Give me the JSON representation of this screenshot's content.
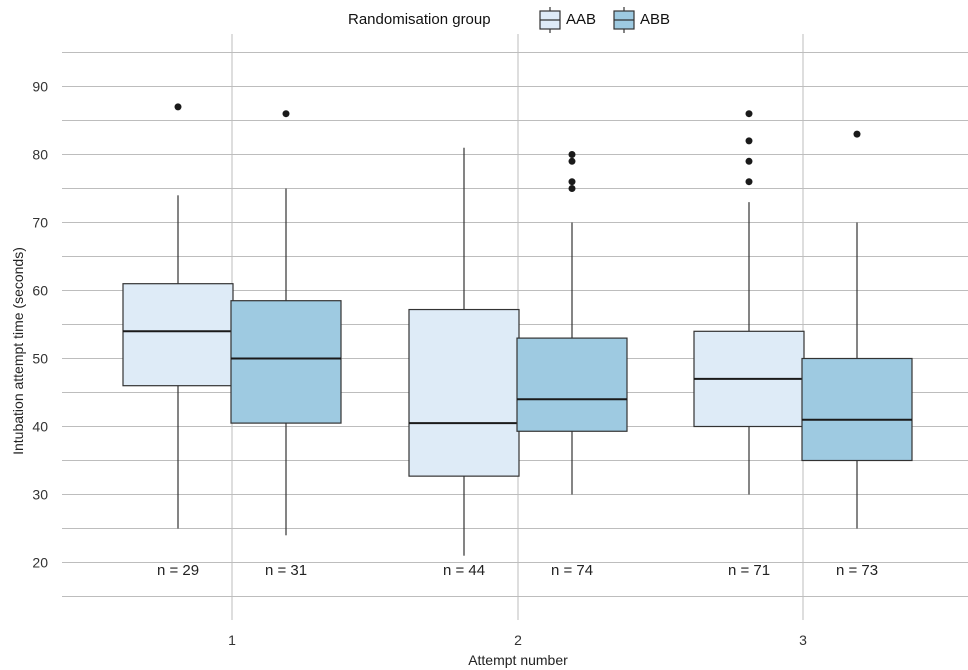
{
  "chart_data": {
    "type": "box",
    "xlabel": "Attempt number",
    "ylabel": "Intubation attempt time (seconds)",
    "ylim": [
      15,
      96
    ],
    "yticks": [
      20,
      30,
      40,
      50,
      60,
      70,
      80,
      90
    ],
    "categories": [
      "1",
      "2",
      "3"
    ],
    "grid": true,
    "legend": {
      "title": "Randomisation group",
      "placement": "top",
      "entries": [
        "AAB",
        "ABB"
      ]
    },
    "colors": {
      "AAB": "#deebf7",
      "ABB": "#9ecae1",
      "outline": "#333333",
      "grid": "#bdbdbd"
    },
    "series": [
      {
        "name": "AAB",
        "boxes": [
          {
            "category": "1",
            "whisker_low": 25,
            "q1": 46,
            "median": 54,
            "q3": 61,
            "whisker_high": 74,
            "outliers": [
              87
            ],
            "n_label": "n = 29"
          },
          {
            "category": "2",
            "whisker_low": 21,
            "q1": 32.7,
            "median": 40.5,
            "q3": 57.2,
            "whisker_high": 81,
            "outliers": [],
            "n_label": "n = 44"
          },
          {
            "category": "3",
            "whisker_low": 30,
            "q1": 40,
            "median": 47,
            "q3": 54,
            "whisker_high": 73,
            "outliers": [
              76,
              79,
              82,
              86
            ],
            "n_label": "n = 71"
          }
        ]
      },
      {
        "name": "ABB",
        "boxes": [
          {
            "category": "1",
            "whisker_low": 24,
            "q1": 40.5,
            "median": 50,
            "q3": 58.5,
            "whisker_high": 75,
            "outliers": [
              86
            ],
            "n_label": "n = 31"
          },
          {
            "category": "2",
            "whisker_low": 30,
            "q1": 39.3,
            "median": 44,
            "q3": 53,
            "whisker_high": 70,
            "outliers": [
              75,
              76,
              79,
              80
            ],
            "n_label": "n = 74"
          },
          {
            "category": "3",
            "whisker_low": 25,
            "q1": 35,
            "median": 41,
            "q3": 50,
            "whisker_high": 70,
            "outliers": [
              83
            ],
            "n_label": "n = 73"
          }
        ]
      }
    ]
  }
}
